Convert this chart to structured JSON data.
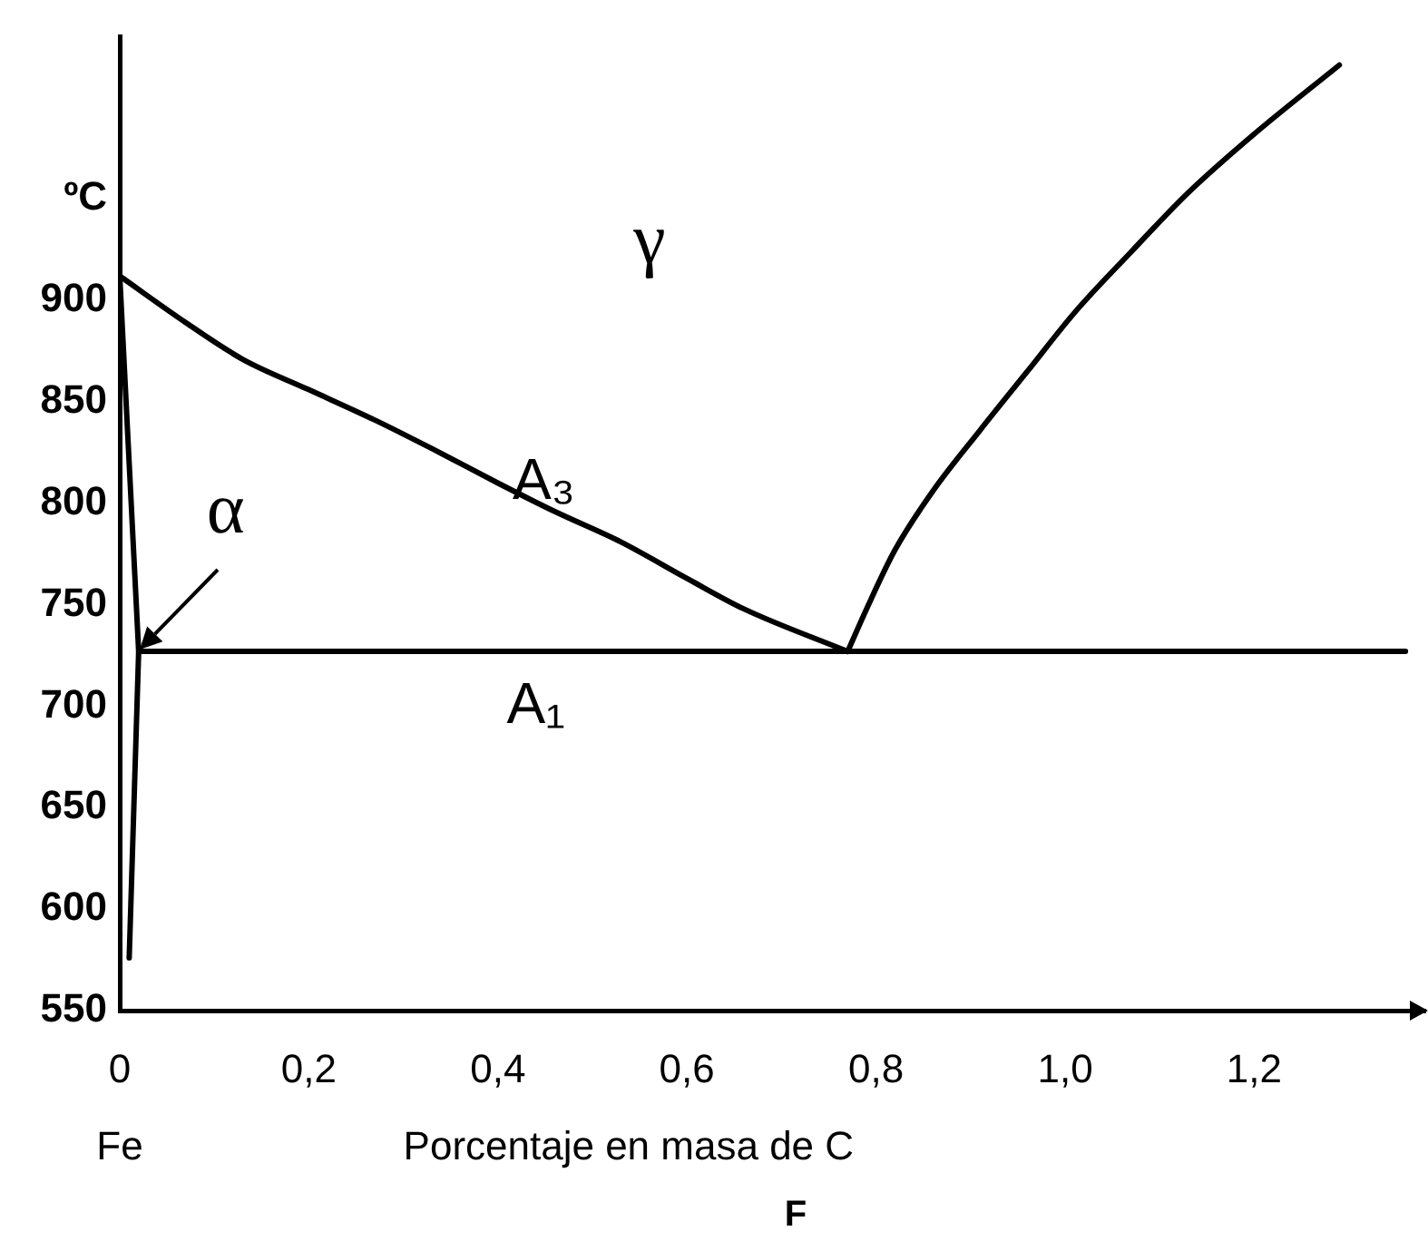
{
  "chart_data": {
    "type": "line",
    "xlabel": "Porcentaje en masa de C",
    "ylabel": "ºC",
    "xlim": [
      0,
      1.38
    ],
    "ylim": [
      550,
      1030
    ],
    "xticks": [
      0,
      {
        "value": 0.2,
        "label": "0,2"
      },
      {
        "value": 0.4,
        "label": "0,4"
      },
      {
        "value": 0.6,
        "label": "0,6"
      },
      {
        "value": 0.8,
        "label": "0,8"
      },
      {
        "value": 1,
        "label": "1,0"
      },
      {
        "value": 1.2,
        "label": "1,2"
      }
    ],
    "yticks": [
      550,
      600,
      650,
      700,
      750,
      800,
      850,
      900
    ],
    "marker": "none",
    "series": [
      {
        "color": "#000000",
        "x": [
          0,
          0.07,
          0.13,
          0.2,
          0.27,
          0.33,
          0.4,
          0.46,
          0.53,
          0.6,
          0.66,
          0.77
        ],
        "values": [
          912,
          889,
          871,
          856,
          841,
          827,
          810,
          796,
          781,
          763,
          748,
          727
        ]
      },
      {
        "color": "#000000",
        "x": [
          0,
          0.02,
          0.01
        ],
        "values": [
          912,
          727,
          576
        ]
      },
      {
        "color": "#000000",
        "x": [
          0.02,
          1.36
        ],
        "values": [
          727,
          727
        ]
      },
      {
        "color": "#000000",
        "x": [
          0.77,
          0.79,
          0.82,
          0.86,
          0.91,
          0.96,
          1.01,
          1.07,
          1.13,
          1.2,
          1.29
        ],
        "values": [
          727,
          748,
          777,
          806,
          836,
          865,
          894,
          924,
          953,
          982,
          1016
        ]
      }
    ],
    "annotations": [
      {
        "text": "α",
        "x": 0.02,
        "y": 727
      },
      "γ",
      "A₃",
      "A₁",
      "Fe",
      "F"
    ]
  }
}
